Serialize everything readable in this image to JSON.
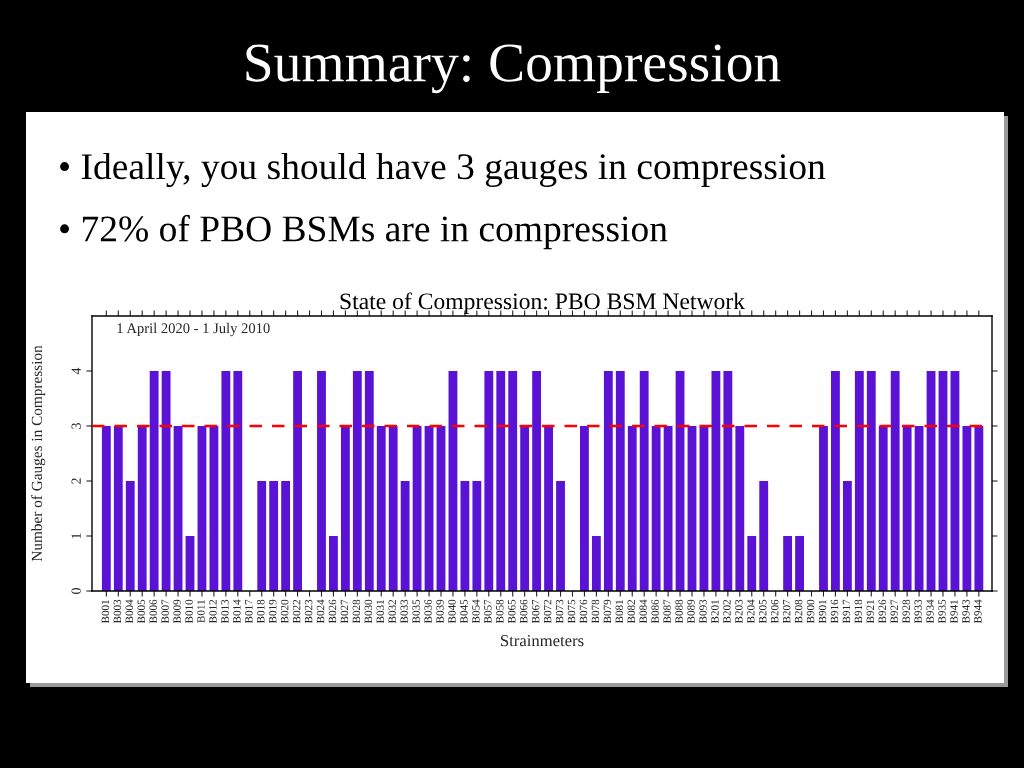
{
  "chart_data": {
    "type": "bar",
    "title": "State of Compression: PBO BSM Network",
    "xlabel": "Strainmeters",
    "ylabel": "Number of Gauges in Compression",
    "annotations": [
      "Summary: Compression",
      "• Ideally, you should have 3 gauges in compression",
      "• 72% of PBO BSMs are in compression",
      "1 April 2020 - 1 July 2010"
    ],
    "categories": [
      "B001",
      "B003",
      "B004",
      "B005",
      "B006",
      "B007",
      "B009",
      "B010",
      "B011",
      "B012",
      "B013",
      "B014",
      "B017",
      "B018",
      "B019",
      "B020",
      "B022",
      "B023",
      "B024",
      "B026",
      "B027",
      "B028",
      "B030",
      "B031",
      "B032",
      "B033",
      "B035",
      "B036",
      "B039",
      "B040",
      "B045",
      "B054",
      "B057",
      "B058",
      "B065",
      "B066",
      "B067",
      "B072",
      "B073",
      "B075",
      "B076",
      "B078",
      "B079",
      "B081",
      "B082",
      "B084",
      "B086",
      "B087",
      "B088",
      "B089",
      "B093",
      "B201",
      "B202",
      "B203",
      "B204",
      "B205",
      "B206",
      "B207",
      "B208",
      "B900",
      "B901",
      "B916",
      "B917",
      "B918",
      "B921",
      "B926",
      "B927",
      "B928",
      "B933",
      "B934",
      "B935",
      "B941",
      "B943",
      "B944"
    ],
    "values": [
      3,
      3,
      2,
      3,
      4,
      4,
      3,
      1,
      3,
      3,
      4,
      4,
      0,
      2,
      2,
      2,
      4,
      0,
      4,
      1,
      3,
      4,
      4,
      3,
      3,
      2,
      3,
      3,
      3,
      4,
      2,
      2,
      4,
      4,
      4,
      3,
      4,
      3,
      2,
      0,
      3,
      1,
      4,
      4,
      3,
      4,
      3,
      3,
      4,
      3,
      3,
      4,
      4,
      3,
      1,
      2,
      0,
      1,
      1,
      0,
      3,
      4,
      2,
      4,
      4,
      3,
      4,
      3,
      3,
      4,
      4,
      4,
      3,
      3
    ],
    "color": "#5a12d4",
    "ylim": [
      0,
      5
    ],
    "yticks": [
      0,
      1,
      2,
      3,
      4
    ],
    "ref_lines": [
      {
        "axis": "y",
        "value": 3,
        "color": "#ff0000",
        "line_style": "dashed"
      }
    ]
  }
}
